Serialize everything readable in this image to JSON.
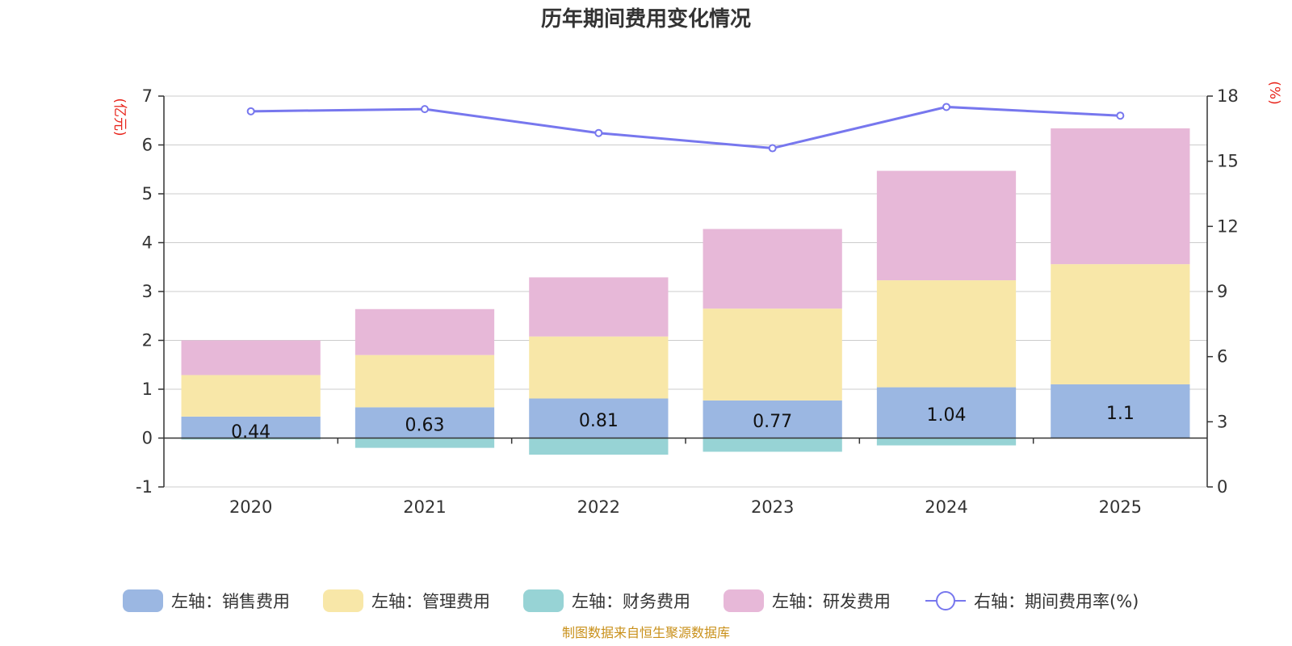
{
  "chart_data": {
    "type": "bar",
    "stacked": true,
    "title": "历年期间费用变化情况",
    "categories": [
      "2020",
      "2021",
      "2022",
      "2023",
      "2024",
      "2025"
    ],
    "left_axis": {
      "unit_label": "(亿元)",
      "ylim": [
        -1,
        7
      ],
      "ticks": [
        "-1",
        "0",
        "1",
        "2",
        "3",
        "4",
        "5",
        "6",
        "7"
      ]
    },
    "right_axis": {
      "unit_label": "(%)",
      "ylim": [
        0,
        18
      ],
      "ticks": [
        "0",
        "3",
        "6",
        "9",
        "12",
        "15",
        "18"
      ]
    },
    "series": [
      {
        "name": "左轴：销售费用",
        "axis": "left",
        "color": "#9bb7e2",
        "values": [
          0.44,
          0.63,
          0.81,
          0.77,
          1.04,
          1.1
        ],
        "labels": [
          "0.44",
          "0.63",
          "0.81",
          "0.77",
          "1.04",
          "1.1"
        ]
      },
      {
        "name": "左轴：管理费用",
        "axis": "left",
        "color": "#f8e7a8",
        "values": [
          0.85,
          1.07,
          1.27,
          1.88,
          2.19,
          2.46
        ]
      },
      {
        "name": "左轴：财务费用",
        "axis": "left",
        "color": "#97d3d5",
        "values": [
          -0.03,
          -0.2,
          -0.34,
          -0.28,
          -0.15,
          0.0
        ]
      },
      {
        "name": "左轴：研发费用",
        "axis": "left",
        "color": "#e7b8d8",
        "values": [
          0.71,
          0.94,
          1.21,
          1.63,
          2.24,
          2.78
        ]
      },
      {
        "name": "右轴：期间费用率(%)",
        "axis": "right",
        "type": "line",
        "color": "#7777ee",
        "values": [
          17.3,
          17.4,
          16.3,
          15.6,
          17.5,
          17.1
        ]
      }
    ],
    "legend_position": "bottom"
  },
  "source_note": "制图数据来自恒生聚源数据库"
}
